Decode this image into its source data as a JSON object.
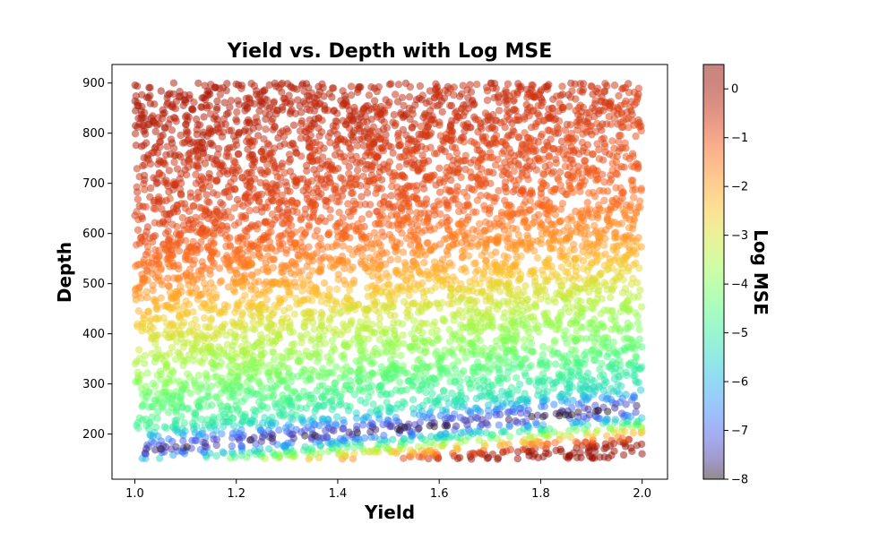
{
  "chart_data": {
    "type": "scatter",
    "title": "Yield vs. Depth with Log MSE",
    "xlabel": "Yield",
    "ylabel": "Depth",
    "xlim": [
      0.955,
      2.05
    ],
    "ylim": [
      110,
      937
    ],
    "xticks": [
      "1.0",
      "1.2",
      "1.4",
      "1.6",
      "1.8",
      "2.0"
    ],
    "xtick_values": [
      1.0,
      1.2,
      1.4,
      1.6,
      1.8,
      2.0
    ],
    "yticks": [
      "200",
      "300",
      "400",
      "500",
      "600",
      "700",
      "800",
      "900"
    ],
    "ytick_values": [
      200,
      300,
      400,
      500,
      600,
      700,
      800,
      900
    ],
    "grid": false,
    "colorbar": {
      "label": "Log MSE",
      "colormap": "turbo",
      "range": [
        -8,
        0.5
      ],
      "ticks": [
        "0",
        "−1",
        "−2",
        "−3",
        "−4",
        "−5",
        "−6",
        "−7",
        "−8"
      ],
      "tick_values": [
        0,
        -1,
        -2,
        -3,
        -4,
        -5,
        -6,
        -7,
        -8
      ]
    },
    "point_style": {
      "alpha": 0.5
    },
    "data_description": {
      "n_points": 6000,
      "yield_range": [
        1.0,
        2.0
      ],
      "depth_range": [
        150,
        900
      ],
      "minimum_log_mse_curve": {
        "x": [
          1.0,
          1.2,
          1.4,
          1.6,
          1.8,
          2.0
        ],
        "depth": [
          165,
          183,
          200,
          215,
          233,
          250
        ]
      },
      "log_mse_at_depth": {
        "depth": [
          160,
          200,
          300,
          400,
          500,
          600,
          700,
          800,
          900
        ],
        "value": [
          -7.8,
          -5,
          -3.8,
          -2.8,
          -1.5,
          -0.8,
          -0.5,
          -0.2,
          0
        ]
      }
    }
  }
}
